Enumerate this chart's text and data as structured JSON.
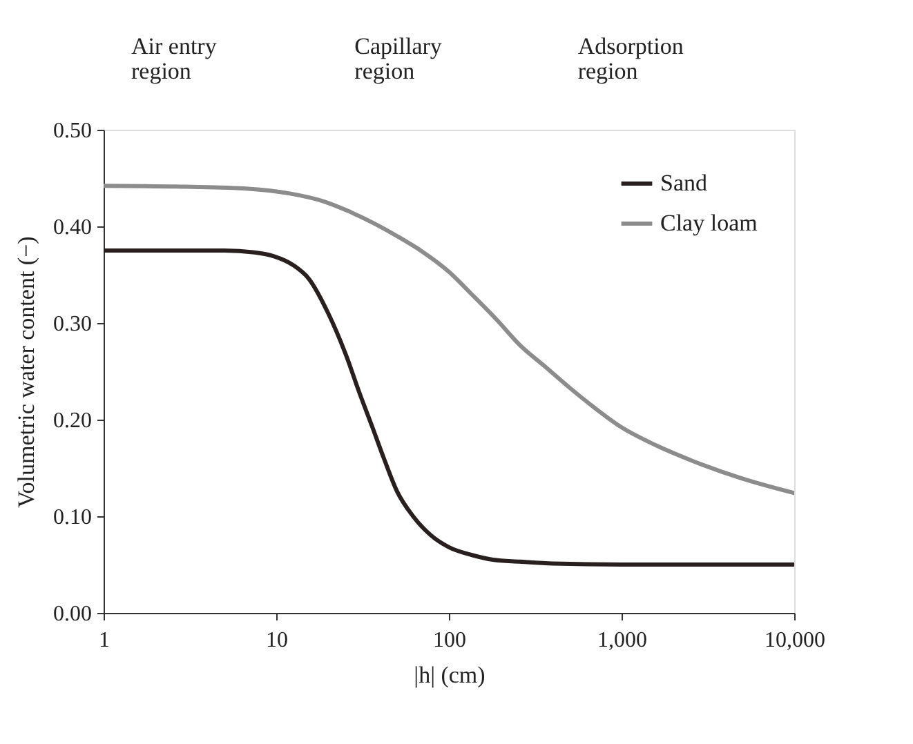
{
  "chart_data": {
    "type": "line",
    "xlabel": "|h| (cm)",
    "ylabel": "Volumetric water content (−)",
    "annotations": [
      "Air entry region",
      "Capillary region",
      "Adsorption region"
    ],
    "log": "x",
    "xlim": [
      1,
      10000
    ],
    "ylim": [
      0,
      0.5
    ],
    "xticks": [
      1,
      10,
      100,
      {
        "value": 1000,
        "label": "1,000"
      },
      {
        "value": 10000,
        "label": "10,000"
      }
    ],
    "yticks": [
      {
        "value": 0,
        "label": "0.00"
      },
      {
        "value": 0.1,
        "label": "0.10"
      },
      {
        "value": 0.2,
        "label": "0.20"
      },
      {
        "value": 0.3,
        "label": "0.30"
      },
      {
        "value": 0.4,
        "label": "0.40"
      },
      {
        "value": 0.5,
        "label": "0.50"
      }
    ],
    "grid": false,
    "legend": "top right",
    "line_style": "solid",
    "marker": "none",
    "series": [
      {
        "name": "Sand",
        "color": "#2a1f1f",
        "x": [
          1,
          3,
          5,
          7.5,
          9.7,
          12.5,
          15.4,
          20,
          25.7,
          30,
          35.9,
          42,
          50,
          62,
          79,
          100,
          135,
          180,
          258,
          400,
          1000,
          3000,
          10000
        ],
        "values": [
          0.375,
          0.375,
          0.375,
          0.373,
          0.369,
          0.36,
          0.346,
          0.31,
          0.264,
          0.23,
          0.193,
          0.16,
          0.126,
          0.1,
          0.08,
          0.068,
          0.06,
          0.055,
          0.053,
          0.051,
          0.05,
          0.05,
          0.05
        ]
      },
      {
        "name": "Clay loam",
        "color": "#8c8c8c",
        "x": [
          1,
          3,
          6.9,
          12,
          18.7,
          26,
          36,
          50,
          70,
          100,
          135,
          190,
          258,
          360,
          500,
          700,
          980,
          1600,
          2600,
          5000,
          10000
        ],
        "values": [
          0.442,
          0.441,
          0.439,
          0.434,
          0.426,
          0.416,
          0.404,
          0.39,
          0.374,
          0.353,
          0.33,
          0.303,
          0.277,
          0.255,
          0.233,
          0.212,
          0.193,
          0.173,
          0.157,
          0.139,
          0.124
        ]
      }
    ]
  }
}
